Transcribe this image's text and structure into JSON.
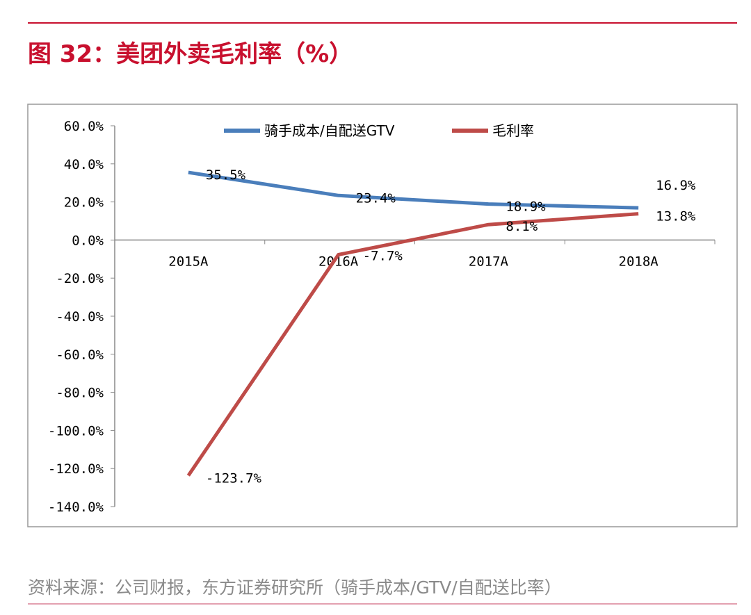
{
  "header": {
    "title": "图 32：美团外卖毛利率（%）"
  },
  "footer": {
    "source": "资料来源：公司财报，东方证券研究所（骑手成本/GTV/自配送比率）"
  },
  "chart_data": {
    "type": "line",
    "title": "图 32：美团外卖毛利率（%）",
    "categories": [
      "2015A",
      "2016A",
      "2017A",
      "2018A"
    ],
    "ylim": [
      -140,
      60
    ],
    "yticks": [
      60,
      40,
      20,
      0,
      -20,
      -40,
      -60,
      -80,
      -100,
      -120,
      -140
    ],
    "ytick_labels": [
      "60.0%",
      "40.0%",
      "20.0%",
      "0.0%",
      "-20.0%",
      "-40.0%",
      "-60.0%",
      "-80.0%",
      "-100.0%",
      "-120.0%",
      "-140.0%"
    ],
    "legend_position": "top",
    "series": [
      {
        "name": "骑手成本/自配送GTV",
        "color": "#4a7ebb",
        "values": [
          35.5,
          23.4,
          18.9,
          16.9
        ],
        "labels": [
          "35.5%",
          "23.4%",
          "18.9%",
          "16.9%"
        ]
      },
      {
        "name": "毛利率",
        "color": "#be4b48",
        "values": [
          -123.7,
          -7.7,
          8.1,
          13.8
        ],
        "labels": [
          "-123.7%",
          "-7.7%",
          "8.1%",
          "13.8%"
        ]
      }
    ]
  }
}
